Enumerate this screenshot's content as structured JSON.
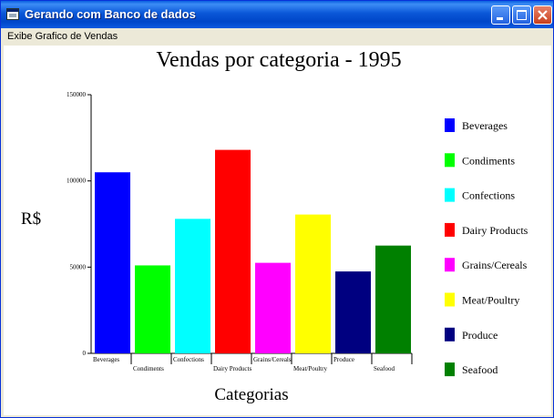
{
  "window": {
    "title": "Gerando com Banco de dados",
    "buttons": {
      "minimize": "minimize-icon",
      "maximize": "maximize-icon",
      "close": "close-icon"
    }
  },
  "menu": {
    "items": [
      {
        "label": "Exibe Grafico de Vendas"
      }
    ]
  },
  "chart_data": {
    "type": "bar",
    "title": "Vendas por categoria - 1995",
    "xlabel": "Categorias",
    "ylabel": "R$",
    "ylim": [
      0,
      150000
    ],
    "yticks": [
      0,
      50000,
      100000,
      150000
    ],
    "ytick_labels": [
      "0",
      "50000",
      "100000",
      "150000"
    ],
    "grid": false,
    "legend_position": "right",
    "categories": [
      "Beverages",
      "Condiments",
      "Confections",
      "Dairy Products",
      "Grains/Cereals",
      "Meat/Poultry",
      "Produce",
      "Seafood"
    ],
    "values": [
      105000,
      51000,
      78000,
      118000,
      52500,
      80500,
      47500,
      62500
    ],
    "colors": [
      "#0000ff",
      "#00ff00",
      "#00ffff",
      "#ff0000",
      "#ff00ff",
      "#ffff00",
      "#000080",
      "#008000"
    ]
  }
}
